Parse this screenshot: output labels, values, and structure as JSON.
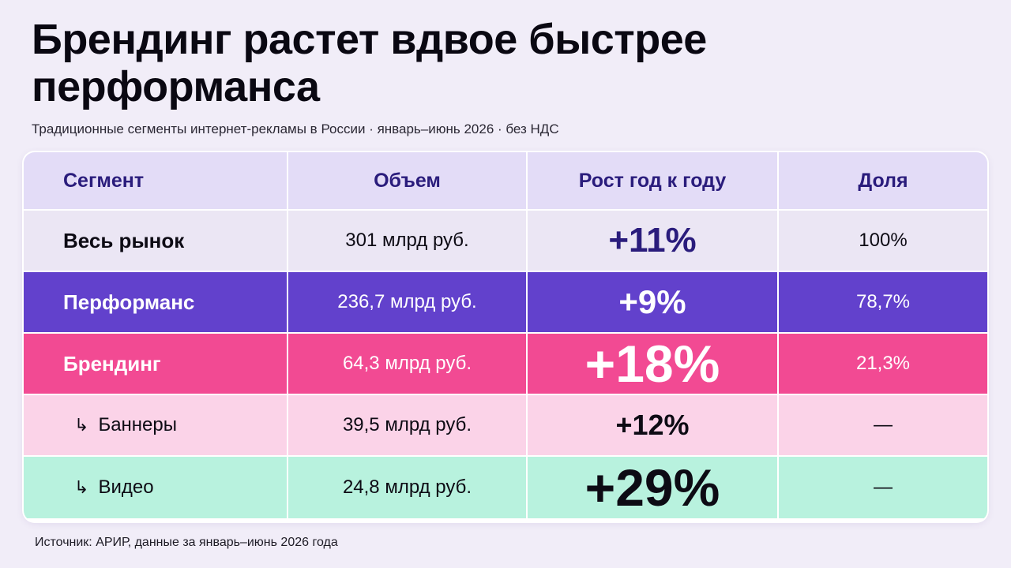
{
  "header": {
    "title": "Брендинг растет вдвое быстрее перформанса",
    "subtitle": "Традиционные сегменты интернет-рекламы в России · январь–июнь 2026 · без НДС"
  },
  "chart_data": {
    "type": "table",
    "columns": [
      "Сегмент",
      "Объем",
      "Рост год к году",
      "Доля"
    ],
    "rows": [
      {
        "segment": "Весь рынок",
        "volume": "301 млрд руб.",
        "growth": "+11%",
        "share": "100%",
        "color": "#ebe6f4"
      },
      {
        "segment": "Перформанс",
        "volume": "236,7 млрд руб.",
        "growth": "+9%",
        "share": "78,7%",
        "color": "#6241cc"
      },
      {
        "segment": "Брендинг",
        "volume": "64,3 млрд руб.",
        "growth": "+18%",
        "share": "21,3%",
        "color": "#f24a93"
      },
      {
        "segment": "Баннеры",
        "volume": "39,5 млрд руб.",
        "growth": "+12%",
        "share": "—",
        "color": "#fbd3e8"
      },
      {
        "segment": "Видео",
        "volume": "24,8 млрд руб.",
        "growth": "+29%",
        "share": "—",
        "color": "#b8f2de"
      }
    ],
    "sub_marker": "↳"
  },
  "footer": {
    "source": "Источник: АРИР, данные за январь–июнь 2026 года"
  },
  "colors": {
    "background": "#f1edf8",
    "header_row": "#e3dcf7",
    "header_text": "#2a1c7c"
  }
}
